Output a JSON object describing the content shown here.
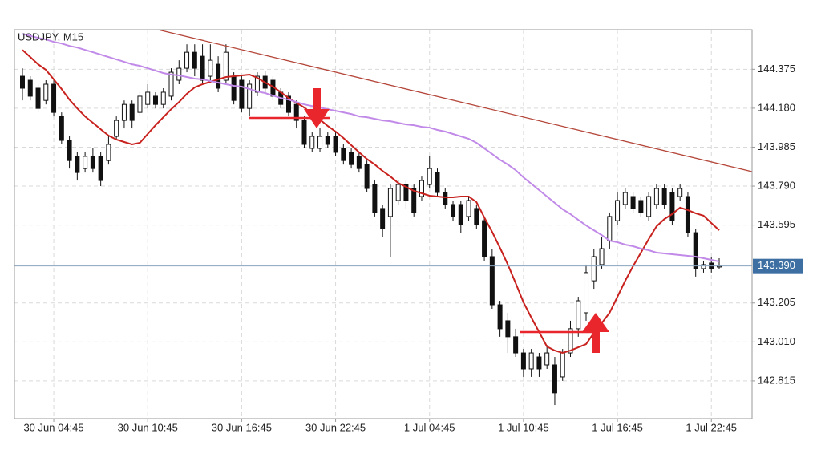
{
  "chart_data": {
    "type": "candlestick",
    "title": "USDJPY, M15",
    "categories": [
      null,
      null,
      null,
      null,
      "30 Jun 04:45",
      null,
      null,
      null,
      null,
      null,
      null,
      null,
      null,
      null,
      null,
      null,
      "30 Jun 10:45",
      null,
      null,
      null,
      null,
      null,
      null,
      null,
      null,
      null,
      null,
      null,
      "30 Jun 16:45",
      null,
      null,
      null,
      null,
      null,
      null,
      null,
      null,
      null,
      null,
      null,
      "30 Jun 22:45",
      null,
      null,
      null,
      null,
      null,
      null,
      null,
      null,
      null,
      null,
      null,
      "1 Jul 04:45",
      null,
      null,
      null,
      null,
      null,
      null,
      null,
      null,
      null,
      null,
      null,
      "1 Jul 10:45",
      null,
      null,
      null,
      null,
      null,
      null,
      null,
      null,
      null,
      null,
      null,
      "1 Jul 16:45",
      null,
      null,
      null,
      null,
      null,
      null,
      null,
      null,
      null,
      null,
      null,
      "1 Jul 22:45",
      null
    ],
    "open": [
      144.34,
      144.32,
      144.28,
      144.219,
      144.3,
      144.139,
      144.019,
      143.939,
      143.878,
      143.939,
      143.939,
      143.918,
      144.039,
      144.119,
      144.199,
      144.159,
      144.199,
      144.24,
      144.199,
      144.24,
      144.32,
      144.38,
      144.46,
      144.44,
      144.34,
      144.4,
      144.32,
      144.34,
      144.32,
      144.179,
      144.26,
      144.34,
      144.32,
      144.26,
      144.24,
      144.199,
      144.119,
      143.979,
      143.979,
      144.039,
      144.039,
      143.979,
      143.959,
      143.939,
      143.898,
      143.798,
      143.678,
      143.638,
      143.718,
      143.798,
      143.778,
      143.738,
      143.798,
      143.858,
      143.758,
      143.698,
      143.698,
      143.638,
      143.678,
      143.617,
      143.437,
      143.196,
      143.116,
      143.036,
      142.955,
      142.875,
      142.935,
      142.895,
      142.895,
      142.835,
      142.955,
      143.076,
      143.156,
      143.316,
      143.397,
      143.517,
      143.617,
      143.698,
      143.738,
      143.718,
      143.638,
      143.698,
      143.778,
      143.758,
      143.738,
      143.738,
      143.557,
      143.377,
      143.405,
      143.385
    ],
    "high": [
      144.38,
      144.34,
      144.3,
      144.32,
      144.32,
      144.159,
      144.039,
      143.959,
      143.959,
      143.979,
      143.959,
      144.039,
      144.139,
      144.219,
      144.219,
      144.26,
      144.3,
      144.26,
      144.28,
      144.38,
      144.42,
      144.5,
      144.5,
      144.5,
      144.5,
      144.44,
      144.5,
      144.36,
      144.34,
      144.32,
      144.36,
      144.368,
      144.34,
      144.28,
      144.26,
      144.219,
      144.139,
      144.059,
      144.079,
      144.059,
      144.059,
      143.999,
      143.979,
      143.959,
      143.918,
      143.818,
      143.698,
      143.798,
      143.818,
      143.818,
      143.798,
      143.838,
      143.939,
      143.878,
      143.778,
      143.718,
      143.718,
      143.738,
      143.698,
      143.638,
      143.477,
      143.216,
      143.156,
      143.076,
      142.975,
      142.975,
      142.955,
      142.995,
      142.935,
      142.975,
      143.116,
      143.236,
      143.397,
      143.477,
      143.537,
      143.658,
      143.758,
      143.778,
      143.758,
      143.738,
      143.758,
      143.798,
      143.798,
      143.778,
      143.798,
      143.758,
      143.577,
      143.417,
      143.437,
      143.429
    ],
    "low": [
      144.219,
      144.219,
      144.159,
      144.199,
      144.139,
      143.999,
      143.878,
      143.818,
      143.858,
      143.858,
      143.79,
      143.898,
      144.019,
      144.079,
      144.079,
      144.139,
      144.179,
      144.179,
      144.179,
      144.219,
      144.3,
      144.36,
      144.34,
      144.3,
      144.32,
      144.26,
      144.3,
      144.199,
      144.159,
      144.139,
      144.24,
      144.26,
      144.219,
      144.179,
      144.139,
      144.079,
      143.979,
      143.959,
      143.959,
      143.979,
      143.939,
      143.898,
      143.878,
      143.858,
      143.758,
      143.638,
      143.537,
      143.437,
      143.698,
      143.678,
      143.638,
      143.718,
      143.778,
      143.738,
      143.678,
      143.617,
      143.557,
      143.617,
      143.577,
      143.417,
      143.176,
      143.036,
      142.955,
      142.935,
      142.835,
      142.835,
      142.835,
      142.875,
      142.694,
      142.815,
      142.935,
      143.036,
      143.116,
      143.276,
      143.377,
      143.477,
      143.597,
      143.678,
      143.658,
      143.638,
      143.617,
      143.678,
      143.678,
      143.597,
      143.718,
      143.537,
      143.337,
      143.357,
      143.357,
      143.373
    ],
    "close": [
      144.28,
      144.24,
      144.179,
      144.3,
      144.159,
      144.019,
      143.918,
      143.858,
      143.939,
      143.878,
      143.818,
      143.999,
      144.119,
      144.199,
      144.119,
      144.24,
      144.26,
      144.199,
      144.26,
      144.36,
      144.38,
      144.46,
      144.38,
      144.32,
      144.42,
      144.28,
      144.46,
      144.219,
      144.179,
      144.3,
      144.34,
      144.28,
      144.24,
      144.199,
      144.159,
      144.119,
      143.999,
      144.039,
      144.039,
      143.999,
      143.959,
      143.918,
      143.898,
      143.878,
      143.778,
      143.658,
      143.577,
      143.778,
      143.798,
      143.718,
      143.658,
      143.818,
      143.878,
      143.758,
      143.698,
      143.638,
      143.597,
      143.718,
      143.597,
      143.437,
      143.196,
      143.076,
      143.036,
      142.955,
      142.875,
      142.955,
      142.875,
      142.955,
      142.755,
      142.955,
      143.076,
      143.216,
      143.357,
      143.437,
      143.477,
      143.638,
      143.718,
      143.758,
      143.678,
      143.658,
      143.738,
      143.778,
      143.698,
      143.617,
      143.778,
      143.557,
      143.377,
      143.397,
      143.377,
      143.39
    ],
    "overlays": [
      {
        "color": "#c8221f",
        "values": [
          144.472,
          144.436,
          144.4,
          144.372,
          144.324,
          144.276,
          144.223,
          144.179,
          144.139,
          144.107,
          144.075,
          144.043,
          144.023,
          144.011,
          143.999,
          144.007,
          144.051,
          144.095,
          144.135,
          144.175,
          144.211,
          144.252,
          144.284,
          144.3,
          144.312,
          144.324,
          144.336,
          144.34,
          144.344,
          144.348,
          144.332,
          144.308,
          144.288,
          144.26,
          144.231,
          144.207,
          144.183,
          144.151,
          144.123,
          144.091,
          144.063,
          144.031,
          143.995,
          143.959,
          143.926,
          143.898,
          143.866,
          143.838,
          143.806,
          143.786,
          143.766,
          143.754,
          143.742,
          143.738,
          143.734,
          143.734,
          143.738,
          143.738,
          143.71,
          143.633,
          143.561,
          143.481,
          143.397,
          143.305,
          143.208,
          143.132,
          143.06,
          142.987,
          142.967,
          142.955,
          142.967,
          142.983,
          142.999,
          143.056,
          143.104,
          143.156,
          143.236,
          143.316,
          143.389,
          143.457,
          143.525,
          143.589,
          143.625,
          143.65,
          143.682,
          143.67,
          143.654,
          143.642,
          143.605,
          143.569
        ]
      },
      {
        "color": "#c18ae8",
        "values": [
          144.552,
          144.542,
          144.532,
          144.524,
          144.512,
          144.504,
          144.492,
          144.484,
          144.472,
          144.46,
          144.448,
          144.436,
          144.424,
          144.412,
          144.4,
          144.392,
          144.38,
          144.368,
          144.356,
          144.348,
          144.344,
          144.336,
          144.328,
          144.324,
          144.316,
          144.308,
          144.3,
          144.292,
          144.288,
          144.276,
          144.264,
          144.256,
          144.243,
          144.231,
          144.223,
          144.211,
          144.199,
          144.191,
          144.183,
          144.175,
          144.167,
          144.159,
          144.151,
          144.139,
          144.135,
          144.127,
          144.119,
          144.115,
          144.107,
          144.099,
          144.095,
          144.087,
          144.083,
          144.071,
          144.063,
          144.051,
          144.039,
          144.027,
          144.007,
          143.979,
          143.951,
          143.922,
          143.898,
          143.87,
          143.834,
          143.802,
          143.77,
          143.738,
          143.706,
          143.674,
          143.65,
          143.621,
          143.593,
          143.569,
          143.545,
          143.517,
          143.509,
          143.497,
          143.489,
          143.477,
          143.469,
          143.457,
          143.453,
          143.449,
          143.445,
          143.441,
          143.437,
          143.429,
          143.421,
          143.413
        ]
      }
    ],
    "current_price": {
      "value": 143.39,
      "label": "143.390"
    },
    "ylim": [
      142.626,
      144.573
    ],
    "yticks": [
      144.375,
      {
        "value": 144.18,
        "label": "144.180"
      },
      143.985,
      {
        "value": 143.79,
        "label": "143.790"
      },
      143.595,
      143.205,
      {
        "value": 143.01,
        "label": "143.010"
      },
      142.815
    ],
    "grid": true
  }
}
